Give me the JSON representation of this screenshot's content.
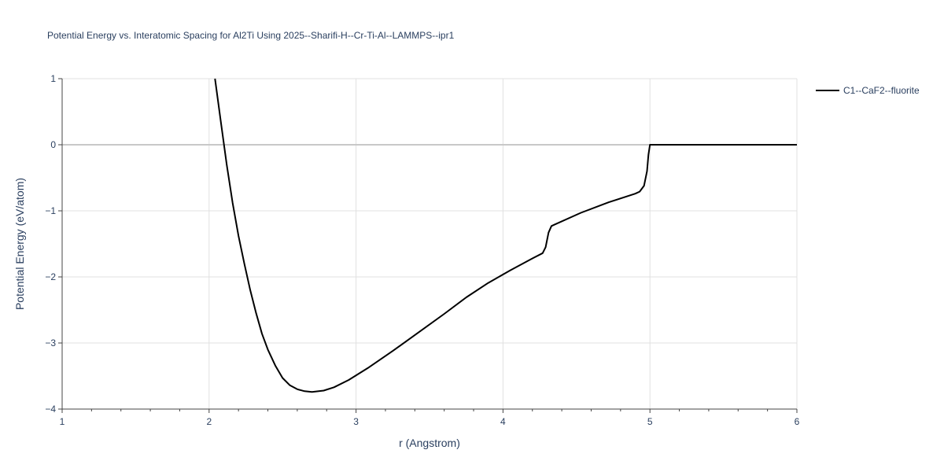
{
  "chart_data": {
    "type": "line",
    "title": "Potential Energy vs. Interatomic Spacing for Al2Ti Using 2025--Sharifi-H--Cr-Ti-Al--LAMMPS--ipr1",
    "xlabel": "r (Angstrom)",
    "ylabel": "Potential Energy (eV/atom)",
    "xlim": [
      1,
      6
    ],
    "ylim": [
      -4,
      1
    ],
    "x_ticks": [
      1,
      2,
      3,
      4,
      5,
      6
    ],
    "x_tick_labels": [
      "1",
      "2",
      "3",
      "4",
      "5",
      "6"
    ],
    "y_ticks": [
      1,
      0,
      -1,
      -2,
      -3,
      -4
    ],
    "y_tick_labels": [
      "1",
      "0",
      "−1",
      "−2",
      "−3",
      "−4"
    ],
    "grid": true,
    "legend_position": "top-right-outside",
    "series": [
      {
        "name": "C1--CaF2--fluorite",
        "color": "#000000",
        "x": [
          2.04,
          2.08,
          2.12,
          2.16,
          2.2,
          2.24,
          2.28,
          2.32,
          2.36,
          2.4,
          2.45,
          2.5,
          2.55,
          2.6,
          2.65,
          2.7,
          2.78,
          2.85,
          2.95,
          3.08,
          3.25,
          3.45,
          3.6,
          3.75,
          3.9,
          4.05,
          4.2,
          4.27,
          4.29,
          4.31,
          4.33,
          4.35,
          4.53,
          4.72,
          4.9,
          4.93,
          4.96,
          4.98,
          4.99,
          5.0,
          5.05,
          5.5,
          6.0
        ],
        "y": [
          1.0,
          0.35,
          -0.3,
          -0.88,
          -1.38,
          -1.8,
          -2.2,
          -2.55,
          -2.86,
          -3.1,
          -3.34,
          -3.53,
          -3.64,
          -3.7,
          -3.73,
          -3.74,
          -3.72,
          -3.67,
          -3.56,
          -3.38,
          -3.12,
          -2.8,
          -2.56,
          -2.31,
          -2.09,
          -1.9,
          -1.72,
          -1.64,
          -1.55,
          -1.33,
          -1.23,
          -1.21,
          -1.03,
          -0.87,
          -0.74,
          -0.71,
          -0.62,
          -0.4,
          -0.15,
          0.0,
          0.0,
          0.0,
          0.0
        ]
      }
    ]
  }
}
